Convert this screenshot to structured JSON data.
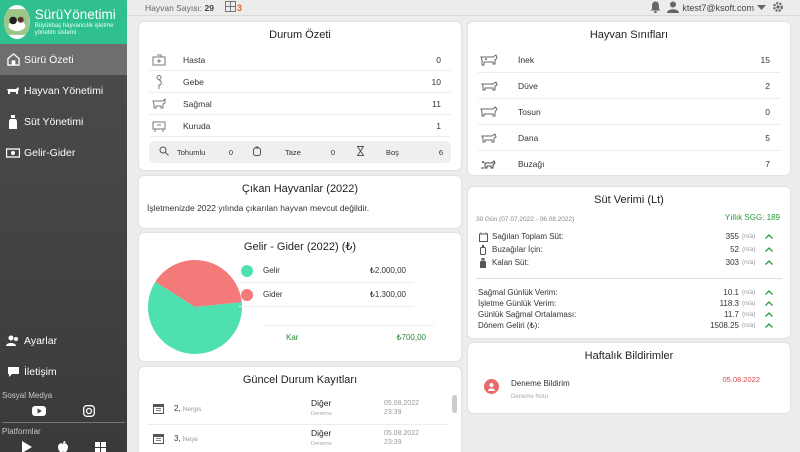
{
  "brand": {
    "title": "SürüYönetimi",
    "tagline": "Büyükbaş hayvancılık işletme yönetim sistemi"
  },
  "sidebar": {
    "items": [
      {
        "label": "Sürü Özeti",
        "icon": "dashboard-icon",
        "active": true
      },
      {
        "label": "Hayvan Yönetimi",
        "icon": "cow-icon"
      },
      {
        "label": "Süt Yönetimi",
        "icon": "milk-bottle-icon"
      },
      {
        "label": "Gelir-Gider",
        "icon": "money-icon"
      }
    ],
    "bottom_items": [
      {
        "label": "Ayarlar",
        "icon": "users-icon"
      },
      {
        "label": "İletişim",
        "icon": "chat-icon"
      }
    ],
    "social_label": "Sosyal Medya",
    "platforms_label": "Platformlar"
  },
  "topbar": {
    "count_label": "Hayvan Sayısı:",
    "count_value": "29",
    "calc_value": "3",
    "email": "ktest7@ksoft.com"
  },
  "status_summary": {
    "title": "Durum Özeti",
    "rows": [
      {
        "label": "Hasta",
        "value": "0",
        "icon": "sick-cow-icon"
      },
      {
        "label": "Gebe",
        "value": "10",
        "icon": "pregnant-icon"
      },
      {
        "label": "Sağmal",
        "value": "11",
        "icon": "milking-cow-icon"
      },
      {
        "label": "Kuruda",
        "value": "1",
        "icon": "dry-cow-icon"
      }
    ],
    "mini": [
      {
        "label": "Tohumlu",
        "value": "0",
        "icon": "insemination-icon"
      },
      {
        "label": "Taze",
        "value": "0",
        "icon": "fresh-icon"
      },
      {
        "label": "Boş",
        "value": "6",
        "icon": "hourglass-icon"
      }
    ]
  },
  "departed": {
    "title": "Çıkan Hayvanlar (2022)",
    "text": "İşletmenizde 2022 yılında çıkarılan hayvan mevcut değildir."
  },
  "finance": {
    "title": "Gelir - Gider (2022) (₺)",
    "rows": [
      {
        "label": "Gelir",
        "value": "₺2.000,00",
        "color": "#4ee0b0"
      },
      {
        "label": "Gider",
        "value": "₺1.300,00",
        "color": "#f47a7a"
      }
    ],
    "profit_label": "Kar",
    "profit_value": "₺700,00",
    "profit_color": "#2a8a3a"
  },
  "records": {
    "title": "Güncel Durum Kayıtları",
    "items": [
      {
        "no": "2,",
        "name": "Nergis",
        "type": "Diğer",
        "sub": "Deneme",
        "date": "05.08.2022",
        "time": "23:39"
      },
      {
        "no": "3,",
        "name": "Neşe",
        "type": "Diğer",
        "sub": "Deneme",
        "date": "05.08.2022",
        "time": "23:39"
      }
    ]
  },
  "classes": {
    "title": "Hayvan Sınıfları",
    "rows": [
      {
        "label": "İnek",
        "value": "15",
        "icon": "cow-class-icon"
      },
      {
        "label": "Düve",
        "value": "2",
        "icon": "heifer-icon"
      },
      {
        "label": "Tosun",
        "value": "0",
        "icon": "bull-icon"
      },
      {
        "label": "Dana",
        "value": "5",
        "icon": "calf-icon"
      },
      {
        "label": "Buzağı",
        "value": "7",
        "icon": "newborn-calf-icon"
      }
    ]
  },
  "milk": {
    "title": "Süt Verimi (Lt)",
    "range": "30 Gün (07.07.2022 - 06.08.2022)",
    "annual": "Yıllık SGG: 189",
    "lines1": [
      {
        "label": "Sağılan Toplam Süt:",
        "value": "355",
        "na": "(n/a)",
        "icon": "milking-icon"
      },
      {
        "label": "Buzağılar İçin:",
        "value": "52",
        "na": "(n/a)",
        "icon": "baby-bottle-icon"
      },
      {
        "label": "Kalan Süt:",
        "value": "303",
        "na": "(n/a)",
        "icon": "milk-bottle-icon"
      }
    ],
    "lines2": [
      {
        "label": "Sağmal Günlük Verim:",
        "value": "10.1",
        "na": "(n/a)"
      },
      {
        "label": "İşletme Günlük Verim:",
        "value": "118.3",
        "na": "(n/a)"
      },
      {
        "label": "Günlük Sağmal Ortalaması:",
        "value": "11.7",
        "na": "(n/a)"
      },
      {
        "label": "Dönem Geliri (₺):",
        "value": "1508.25",
        "na": "(n/a)"
      }
    ]
  },
  "weekly": {
    "title": "Haftalık Bildirimler",
    "items": [
      {
        "title": "Deneme Bildirim",
        "sub": "Deneme Notu",
        "date": "05.08.2022"
      }
    ]
  }
}
